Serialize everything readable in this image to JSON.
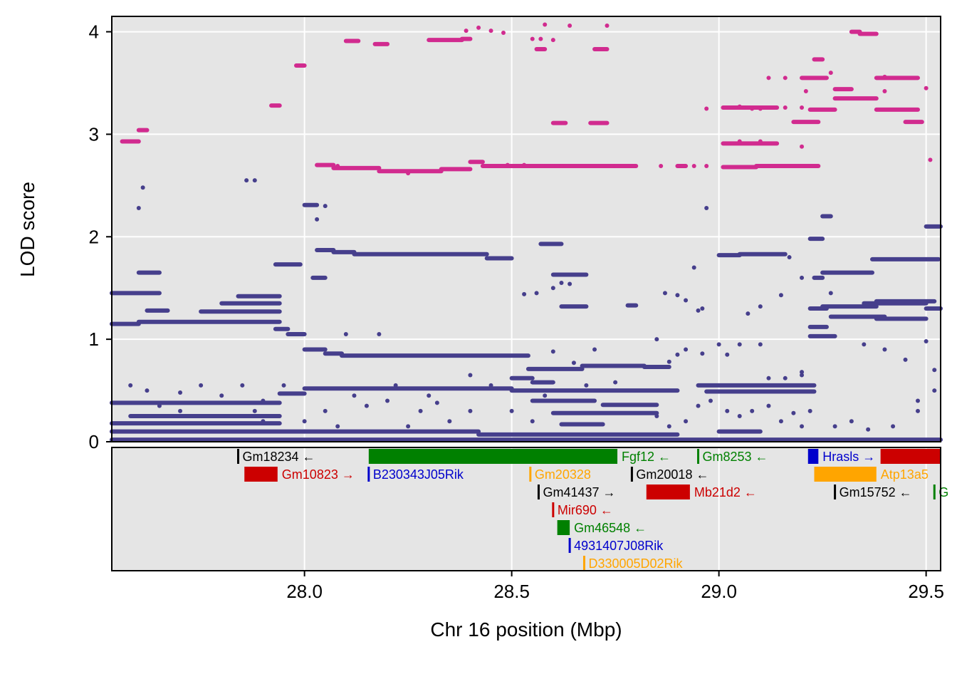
{
  "chart_data": {
    "type": "scatter",
    "xlabel": "Chr 16 position (Mbp)",
    "ylabel": "LOD score",
    "xlim": [
      27.535,
      29.535
    ],
    "ylim": [
      0,
      4.15
    ],
    "xticks": [
      {
        "value": 28.0,
        "label": "28.0"
      },
      {
        "value": 28.5,
        "label": "28.5"
      },
      {
        "value": 29.0,
        "label": "29.0"
      },
      {
        "value": 29.5,
        "label": "29.5"
      }
    ],
    "yticks": [
      {
        "value": 0,
        "label": "0"
      },
      {
        "value": 1,
        "label": "1"
      },
      {
        "value": 2,
        "label": "2"
      },
      {
        "value": 3,
        "label": "3"
      },
      {
        "value": 4,
        "label": "4"
      }
    ],
    "grid": true,
    "series": [
      {
        "color": "#d12b8f",
        "segments": [
          [
            27.56,
            27.6,
            2.93
          ],
          [
            27.6,
            27.62,
            3.04
          ],
          [
            27.92,
            27.94,
            3.28
          ],
          [
            27.98,
            28.0,
            3.67
          ],
          [
            28.03,
            28.07,
            2.7
          ],
          [
            28.07,
            28.18,
            2.67
          ],
          [
            28.18,
            28.33,
            2.64
          ],
          [
            28.33,
            28.4,
            2.66
          ],
          [
            28.4,
            28.43,
            2.73
          ],
          [
            28.43,
            28.75,
            2.69
          ],
          [
            28.75,
            28.8,
            2.69
          ],
          [
            28.9,
            28.92,
            2.69
          ],
          [
            29.01,
            29.09,
            2.68
          ],
          [
            29.09,
            29.24,
            2.69
          ],
          [
            29.01,
            29.14,
            2.91
          ],
          [
            29.01,
            29.14,
            3.26
          ],
          [
            29.22,
            29.28,
            3.24
          ],
          [
            29.28,
            29.38,
            3.35
          ],
          [
            29.38,
            29.48,
            3.24
          ],
          [
            29.38,
            29.48,
            3.55
          ],
          [
            28.1,
            28.13,
            3.91
          ],
          [
            28.17,
            28.2,
            3.88
          ],
          [
            28.3,
            28.38,
            3.92
          ],
          [
            28.38,
            28.4,
            3.93
          ],
          [
            28.56,
            28.58,
            3.83
          ],
          [
            28.6,
            28.63,
            3.11
          ],
          [
            28.69,
            28.73,
            3.11
          ],
          [
            28.7,
            28.73,
            3.83
          ],
          [
            29.2,
            29.26,
            3.55
          ],
          [
            29.23,
            29.25,
            3.73
          ],
          [
            29.32,
            29.34,
            4.0
          ],
          [
            29.34,
            29.38,
            3.98
          ],
          [
            29.18,
            29.24,
            3.12
          ],
          [
            29.28,
            29.32,
            3.44
          ],
          [
            29.45,
            29.49,
            3.12
          ]
        ],
        "points": [
          [
            28.39,
            4.01
          ],
          [
            28.42,
            4.04
          ],
          [
            28.45,
            4.01
          ],
          [
            28.48,
            3.99
          ],
          [
            28.57,
            3.93
          ],
          [
            28.58,
            4.07
          ],
          [
            28.64,
            4.06
          ],
          [
            28.73,
            4.06
          ],
          [
            28.55,
            3.93
          ],
          [
            28.6,
            3.92
          ],
          [
            28.49,
            2.7
          ],
          [
            28.53,
            2.7
          ],
          [
            28.62,
            2.69
          ],
          [
            28.86,
            2.69
          ],
          [
            28.94,
            2.69
          ],
          [
            28.97,
            3.25
          ],
          [
            28.97,
            2.69
          ],
          [
            29.05,
            3.27
          ],
          [
            29.06,
            3.26
          ],
          [
            29.08,
            3.25
          ],
          [
            29.1,
            3.25
          ],
          [
            29.12,
            3.55
          ],
          [
            29.16,
            3.55
          ],
          [
            29.05,
            2.93
          ],
          [
            29.1,
            2.93
          ],
          [
            29.16,
            3.26
          ],
          [
            29.2,
            3.26
          ],
          [
            29.2,
            2.88
          ],
          [
            29.21,
            3.42
          ],
          [
            29.4,
            3.56
          ],
          [
            29.5,
            3.45
          ],
          [
            29.51,
            2.75
          ],
          [
            29.27,
            3.6
          ],
          [
            29.4,
            3.42
          ],
          [
            28.25,
            2.62
          ],
          [
            28.08,
            2.69
          ]
        ]
      },
      {
        "color": "#463f8c",
        "segments": [
          [
            27.535,
            27.6,
            1.15
          ],
          [
            27.6,
            27.94,
            1.17
          ],
          [
            27.93,
            27.96,
            1.1
          ],
          [
            27.96,
            28.0,
            1.05
          ],
          [
            28.0,
            28.05,
            0.9
          ],
          [
            28.05,
            28.09,
            0.86
          ],
          [
            28.09,
            28.54,
            0.84
          ],
          [
            28.54,
            28.67,
            0.71
          ],
          [
            28.67,
            28.82,
            0.74
          ],
          [
            28.82,
            28.88,
            0.73
          ],
          [
            28.03,
            28.07,
            1.87
          ],
          [
            28.07,
            28.12,
            1.85
          ],
          [
            28.12,
            28.44,
            1.83
          ],
          [
            28.44,
            28.5,
            1.79
          ],
          [
            28.0,
            28.5,
            0.52
          ],
          [
            28.5,
            28.9,
            0.5
          ],
          [
            27.94,
            28.0,
            0.47
          ],
          [
            28.95,
            29.23,
            0.55
          ],
          [
            28.97,
            29.23,
            0.49
          ],
          [
            29.0,
            29.1,
            0.1
          ],
          [
            27.535,
            27.94,
            0.38
          ],
          [
            27.535,
            27.94,
            0.18
          ],
          [
            27.58,
            27.94,
            0.25
          ],
          [
            27.535,
            27.65,
            1.45
          ],
          [
            27.62,
            27.67,
            1.28
          ],
          [
            27.6,
            27.65,
            1.65
          ],
          [
            27.84,
            27.94,
            1.42
          ],
          [
            27.8,
            27.94,
            1.35
          ],
          [
            27.75,
            27.94,
            1.27
          ],
          [
            27.93,
            27.99,
            1.73
          ],
          [
            28.0,
            28.03,
            2.31
          ],
          [
            28.02,
            28.05,
            1.6
          ],
          [
            28.57,
            28.62,
            1.93
          ],
          [
            28.6,
            28.68,
            1.63
          ],
          [
            28.62,
            28.68,
            1.32
          ],
          [
            28.78,
            28.8,
            1.33
          ],
          [
            29.0,
            29.05,
            1.82
          ],
          [
            29.05,
            29.16,
            1.83
          ],
          [
            29.22,
            29.25,
            1.98
          ],
          [
            29.25,
            29.27,
            2.2
          ],
          [
            29.25,
            29.37,
            1.65
          ],
          [
            29.37,
            29.53,
            1.78
          ],
          [
            29.25,
            29.38,
            1.32
          ],
          [
            29.35,
            29.5,
            1.35
          ],
          [
            29.27,
            29.4,
            1.22
          ],
          [
            29.38,
            29.5,
            1.2
          ],
          [
            29.22,
            29.26,
            1.12
          ],
          [
            29.22,
            29.28,
            1.03
          ],
          [
            29.22,
            29.26,
            1.3
          ],
          [
            29.23,
            29.25,
            1.6
          ],
          [
            29.5,
            29.535,
            2.1
          ],
          [
            29.5,
            29.535,
            1.3
          ],
          [
            27.535,
            28.0,
            0.1
          ],
          [
            28.0,
            28.42,
            0.1
          ],
          [
            28.42,
            28.9,
            0.07
          ],
          [
            28.6,
            28.85,
            0.28
          ],
          [
            28.55,
            28.7,
            0.4
          ],
          [
            28.72,
            28.85,
            0.36
          ],
          [
            28.62,
            28.72,
            0.17
          ],
          [
            29.38,
            29.52,
            1.37
          ],
          [
            28.5,
            28.55,
            0.62
          ],
          [
            28.55,
            28.6,
            0.58
          ],
          [
            27.535,
            29.535,
            0.02
          ]
        ],
        "points": [
          [
            27.6,
            2.28
          ],
          [
            27.61,
            2.48
          ],
          [
            27.86,
            2.55
          ],
          [
            27.88,
            2.55
          ],
          [
            28.03,
            2.17
          ],
          [
            28.05,
            2.3
          ],
          [
            28.1,
            1.05
          ],
          [
            28.18,
            1.05
          ],
          [
            28.6,
            1.5
          ],
          [
            28.62,
            1.55
          ],
          [
            28.64,
            1.54
          ],
          [
            28.53,
            1.44
          ],
          [
            28.56,
            1.45
          ],
          [
            28.87,
            1.45
          ],
          [
            28.9,
            1.43
          ],
          [
            28.92,
            1.38
          ],
          [
            28.95,
            1.28
          ],
          [
            28.96,
            1.3
          ],
          [
            28.94,
            1.7
          ],
          [
            28.97,
            2.28
          ],
          [
            29.07,
            1.25
          ],
          [
            29.1,
            1.32
          ],
          [
            29.15,
            1.43
          ],
          [
            29.17,
            1.8
          ],
          [
            29.2,
            1.6
          ],
          [
            29.27,
            1.45
          ],
          [
            29.35,
            0.95
          ],
          [
            29.4,
            0.9
          ],
          [
            29.2,
            0.65
          ],
          [
            29.45,
            0.8
          ],
          [
            29.5,
            0.98
          ],
          [
            29.52,
            0.7
          ],
          [
            29.48,
            0.4
          ],
          [
            28.9,
            0.85
          ],
          [
            28.88,
            0.78
          ],
          [
            28.92,
            0.9
          ],
          [
            28.96,
            0.86
          ],
          [
            28.85,
            1.0
          ],
          [
            28.7,
            0.9
          ],
          [
            28.6,
            0.88
          ],
          [
            28.65,
            0.77
          ],
          [
            27.62,
            0.5
          ],
          [
            27.7,
            0.48
          ],
          [
            27.75,
            0.55
          ],
          [
            27.8,
            0.45
          ],
          [
            27.85,
            0.55
          ],
          [
            27.9,
            0.4
          ],
          [
            28.2,
            0.4
          ],
          [
            28.28,
            0.3
          ],
          [
            28.32,
            0.38
          ],
          [
            28.4,
            0.3
          ],
          [
            28.12,
            0.45
          ],
          [
            28.15,
            0.35
          ],
          [
            28.22,
            0.55
          ],
          [
            27.58,
            0.55
          ],
          [
            27.65,
            0.35
          ],
          [
            27.7,
            0.3
          ],
          [
            27.75,
            0.25
          ],
          [
            27.88,
            0.3
          ],
          [
            27.9,
            0.2
          ],
          [
            27.95,
            0.55
          ],
          [
            28.05,
            0.3
          ],
          [
            28.08,
            0.15
          ],
          [
            28.0,
            0.2
          ],
          [
            28.25,
            0.15
          ],
          [
            28.3,
            0.45
          ],
          [
            28.35,
            0.2
          ],
          [
            28.5,
            0.3
          ],
          [
            28.55,
            0.2
          ],
          [
            28.58,
            0.45
          ],
          [
            28.85,
            0.25
          ],
          [
            28.88,
            0.15
          ],
          [
            28.92,
            0.2
          ],
          [
            28.95,
            0.35
          ],
          [
            28.98,
            0.4
          ],
          [
            29.02,
            0.3
          ],
          [
            29.05,
            0.25
          ],
          [
            29.08,
            0.3
          ],
          [
            29.12,
            0.35
          ],
          [
            29.15,
            0.2
          ],
          [
            29.18,
            0.28
          ],
          [
            29.2,
            0.15
          ],
          [
            29.22,
            0.3
          ],
          [
            29.28,
            0.15
          ],
          [
            29.32,
            0.2
          ],
          [
            29.36,
            0.12
          ],
          [
            29.42,
            0.15
          ],
          [
            29.48,
            0.3
          ],
          [
            29.52,
            0.5
          ],
          [
            29.12,
            0.62
          ],
          [
            29.16,
            0.62
          ],
          [
            29.2,
            0.68
          ],
          [
            29.1,
            0.95
          ],
          [
            29.05,
            0.95
          ],
          [
            29.0,
            0.95
          ],
          [
            29.02,
            0.85
          ],
          [
            28.45,
            0.55
          ],
          [
            28.4,
            0.65
          ],
          [
            28.68,
            0.55
          ],
          [
            28.75,
            0.58
          ]
        ]
      }
    ],
    "genes": [
      {
        "name": "Gm18234",
        "start": 27.84,
        "end": 27.84,
        "row": 0,
        "strand": "←",
        "color": "#000000"
      },
      {
        "name": "Gm10823",
        "start": 27.855,
        "end": 27.935,
        "row": 1,
        "strand": "→",
        "color": "#cc0000"
      },
      {
        "name": "Fgf12",
        "start": 28.155,
        "end": 28.755,
        "row": 0,
        "strand": "←",
        "color": "#008000"
      },
      {
        "name": "B230343J05Rik",
        "start": 28.155,
        "end": 28.155,
        "row": 1,
        "strand": "",
        "color": "#0000cc"
      },
      {
        "name": "Gm20328",
        "start": 28.545,
        "end": 28.545,
        "row": 1,
        "strand": "",
        "color": "#ffa500"
      },
      {
        "name": "Gm41437",
        "start": 28.565,
        "end": 28.565,
        "row": 2,
        "strand": "→",
        "color": "#000000"
      },
      {
        "name": "Mir690",
        "start": 28.6,
        "end": 28.6,
        "row": 3,
        "strand": "←",
        "color": "#cc0000"
      },
      {
        "name": "Gm46548",
        "start": 28.61,
        "end": 28.64,
        "row": 4,
        "strand": "←",
        "color": "#008000"
      },
      {
        "name": "4931407J08Rik",
        "start": 28.64,
        "end": 28.64,
        "row": 5,
        "strand": "",
        "color": "#0000cc"
      },
      {
        "name": "D330005D02Rik",
        "start": 28.675,
        "end": 28.675,
        "row": 6,
        "strand": "",
        "color": "#ffa500"
      },
      {
        "name": "Gm20018",
        "start": 28.79,
        "end": 28.79,
        "row": 1,
        "strand": "←",
        "color": "#000000"
      },
      {
        "name": "Mb21d2",
        "start": 28.825,
        "end": 28.93,
        "row": 2,
        "strand": "←",
        "color": "#cc0000"
      },
      {
        "name": "Gm8253",
        "start": 28.95,
        "end": 28.95,
        "row": 0,
        "strand": "←",
        "color": "#008000"
      },
      {
        "name": "Hrasls",
        "start": 29.215,
        "end": 29.24,
        "row": 0,
        "strand": "→",
        "color": "#0000cc"
      },
      {
        "name": "Atp13a5",
        "start": 29.23,
        "end": 29.38,
        "row": 1,
        "strand": "",
        "color": "#ffa500"
      },
      {
        "name": "Gm15752",
        "start": 29.28,
        "end": 29.28,
        "row": 2,
        "strand": "←",
        "color": "#000000"
      },
      {
        "name": "G",
        "start": 29.52,
        "end": 29.52,
        "row": 2,
        "strand": "",
        "color": "#008000"
      },
      {
        "name": "",
        "start": 29.39,
        "end": 29.535,
        "row": 0,
        "strand": "",
        "color": "#cc0000"
      }
    ]
  }
}
